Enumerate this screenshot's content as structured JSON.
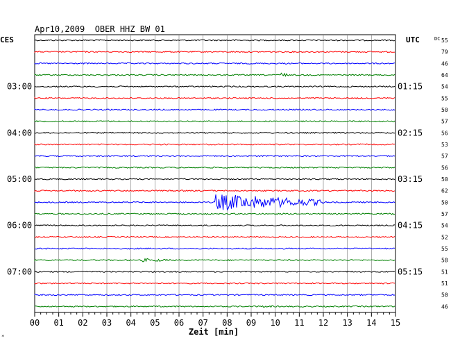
{
  "header": {
    "title": "Apr10,2009  OBER HHZ BW 01",
    "left_label": "CES",
    "right_label": "UTC",
    "dc_label": "DC"
  },
  "chart_data": {
    "type": "line",
    "title": "Apr10,2009  OBER HHZ BW 01",
    "xlabel": "Zeit [min]",
    "x_ticks": [
      "00",
      "01",
      "02",
      "03",
      "04",
      "05",
      "06",
      "07",
      "08",
      "09",
      "10",
      "11",
      "12",
      "13",
      "14",
      "15"
    ],
    "xlim": [
      0,
      15
    ],
    "grid": true,
    "left_time_labels": [
      "03:00",
      "04:00",
      "05:00",
      "06:00",
      "07:00"
    ],
    "right_time_labels": [
      "01:15",
      "02:15",
      "03:15",
      "04:15",
      "05:15"
    ],
    "trace_colors": [
      "#000000",
      "#ff0000",
      "#0000ff",
      "#008000"
    ],
    "dc_values": [
      "55",
      "79",
      "46",
      "64",
      "54",
      "55",
      "50",
      "57",
      "56",
      "53",
      "57",
      "56",
      "50",
      "62",
      "50",
      "57",
      "54",
      "52",
      "55",
      "58",
      "51",
      "51",
      "50",
      "46"
    ],
    "events": [
      {
        "trace": 3,
        "start_min": 10.2,
        "end_min": 10.5,
        "amplitude": "medium"
      },
      {
        "trace": 14,
        "start_min": 7.5,
        "end_min": 12.0,
        "amplitude": "large"
      },
      {
        "trace": 19,
        "start_min": 4.5,
        "end_min": 6.0,
        "amplitude": "small"
      },
      {
        "trace": 23,
        "start_min": 9.5,
        "end_min": 10.0,
        "amplitude": "small"
      }
    ]
  }
}
